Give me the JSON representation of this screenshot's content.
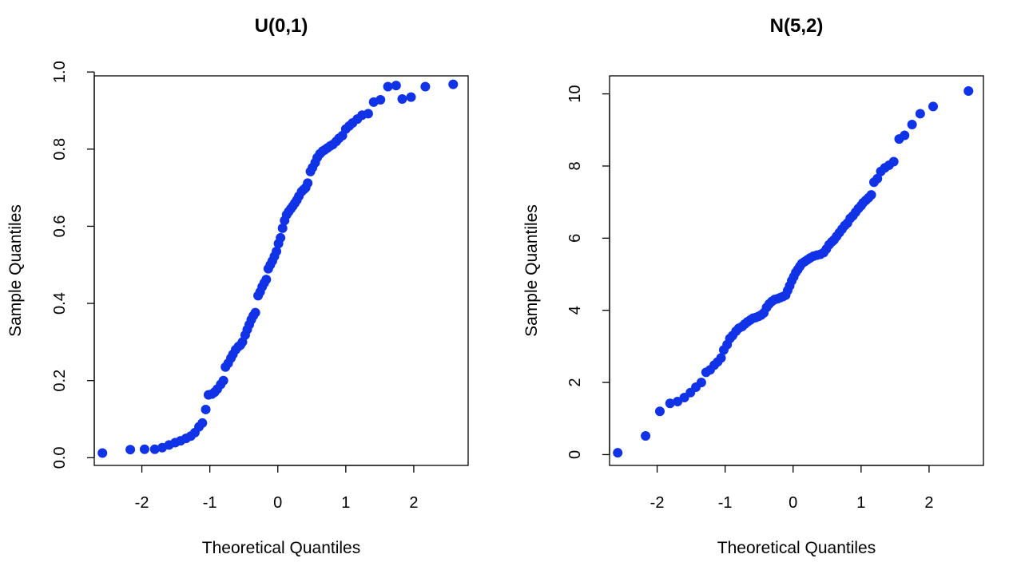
{
  "chart_data": [
    {
      "type": "scatter",
      "title": "U(0,1)",
      "xlabel": "Theoretical Quantiles",
      "ylabel": "Sample Quantiles",
      "xlim": [
        -2.7,
        2.8
      ],
      "ylim": [
        -0.02,
        0.99
      ],
      "xticks": [
        -2,
        -1,
        0,
        1,
        2
      ],
      "xtick_labels": [
        "-2",
        "-1",
        "0",
        "1",
        "2"
      ],
      "yticks": [
        0.0,
        0.2,
        0.4,
        0.6,
        0.8,
        1.0
      ],
      "ytick_labels": [
        "0.0",
        "0.2",
        "0.4",
        "0.6",
        "0.8",
        "1.0"
      ],
      "grid": false,
      "point_color": "#1033e8",
      "points": [
        [
          -2.58,
          0.012
        ],
        [
          -2.17,
          0.021
        ],
        [
          -1.96,
          0.022
        ],
        [
          -1.81,
          0.022
        ],
        [
          -1.7,
          0.026
        ],
        [
          -1.6,
          0.033
        ],
        [
          -1.51,
          0.039
        ],
        [
          -1.43,
          0.044
        ],
        [
          -1.35,
          0.05
        ],
        [
          -1.28,
          0.056
        ],
        [
          -1.22,
          0.065
        ],
        [
          -1.16,
          0.08
        ],
        [
          -1.11,
          0.09
        ],
        [
          -1.06,
          0.125
        ],
        [
          -1.02,
          0.163
        ],
        [
          -0.97,
          0.165
        ],
        [
          -0.93,
          0.17
        ],
        [
          -0.89,
          0.178
        ],
        [
          -0.84,
          0.19
        ],
        [
          -0.8,
          0.2
        ],
        [
          -0.77,
          0.235
        ],
        [
          -0.73,
          0.245
        ],
        [
          -0.69,
          0.258
        ],
        [
          -0.66,
          0.268
        ],
        [
          -0.62,
          0.28
        ],
        [
          -0.58,
          0.288
        ],
        [
          -0.55,
          0.292
        ],
        [
          -0.52,
          0.3
        ],
        [
          -0.48,
          0.318
        ],
        [
          -0.45,
          0.332
        ],
        [
          -0.42,
          0.345
        ],
        [
          -0.39,
          0.358
        ],
        [
          -0.36,
          0.368
        ],
        [
          -0.33,
          0.376
        ],
        [
          -0.29,
          0.42
        ],
        [
          -0.26,
          0.43
        ],
        [
          -0.23,
          0.443
        ],
        [
          -0.2,
          0.453
        ],
        [
          -0.17,
          0.462
        ],
        [
          -0.14,
          0.49
        ],
        [
          -0.11,
          0.5
        ],
        [
          -0.08,
          0.51
        ],
        [
          -0.05,
          0.522
        ],
        [
          -0.02,
          0.535
        ],
        [
          0.01,
          0.555
        ],
        [
          0.04,
          0.57
        ],
        [
          0.07,
          0.595
        ],
        [
          0.1,
          0.615
        ],
        [
          0.13,
          0.63
        ],
        [
          0.16,
          0.638
        ],
        [
          0.19,
          0.645
        ],
        [
          0.22,
          0.652
        ],
        [
          0.25,
          0.66
        ],
        [
          0.28,
          0.668
        ],
        [
          0.31,
          0.678
        ],
        [
          0.35,
          0.69
        ],
        [
          0.38,
          0.695
        ],
        [
          0.41,
          0.7
        ],
        [
          0.44,
          0.712
        ],
        [
          0.48,
          0.742
        ],
        [
          0.51,
          0.752
        ],
        [
          0.55,
          0.765
        ],
        [
          0.58,
          0.778
        ],
        [
          0.62,
          0.788
        ],
        [
          0.66,
          0.795
        ],
        [
          0.69,
          0.798
        ],
        [
          0.73,
          0.803
        ],
        [
          0.77,
          0.808
        ],
        [
          0.81,
          0.812
        ],
        [
          0.86,
          0.82
        ],
        [
          0.9,
          0.828
        ],
        [
          0.95,
          0.835
        ],
        [
          1.0,
          0.852
        ],
        [
          1.05,
          0.86
        ],
        [
          1.1,
          0.868
        ],
        [
          1.17,
          0.878
        ],
        [
          1.24,
          0.888
        ],
        [
          1.33,
          0.892
        ],
        [
          1.41,
          0.922
        ],
        [
          1.51,
          0.928
        ],
        [
          1.62,
          0.962
        ],
        [
          1.74,
          0.965
        ],
        [
          1.83,
          0.93
        ],
        [
          1.96,
          0.935
        ],
        [
          2.17,
          0.962
        ],
        [
          2.58,
          0.968
        ]
      ]
    },
    {
      "type": "scatter",
      "title": "N(5,2)",
      "xlabel": "Theoretical Quantiles",
      "ylabel": "Sample Quantiles",
      "xlim": [
        -2.7,
        2.8
      ],
      "ylim": [
        -0.3,
        10.5
      ],
      "xticks": [
        -2,
        -1,
        0,
        1,
        2
      ],
      "xtick_labels": [
        "-2",
        "-1",
        "0",
        "1",
        "2"
      ],
      "yticks": [
        0,
        2,
        4,
        6,
        8,
        10
      ],
      "ytick_labels": [
        "0",
        "2",
        "4",
        "6",
        "8",
        "10"
      ],
      "grid": false,
      "point_color": "#1033e8",
      "points": [
        [
          -2.58,
          0.05
        ],
        [
          -2.17,
          0.52
        ],
        [
          -1.96,
          1.2
        ],
        [
          -1.81,
          1.42
        ],
        [
          -1.7,
          1.47
        ],
        [
          -1.6,
          1.58
        ],
        [
          -1.51,
          1.72
        ],
        [
          -1.43,
          1.87
        ],
        [
          -1.35,
          2.0
        ],
        [
          -1.28,
          2.28
        ],
        [
          -1.22,
          2.35
        ],
        [
          -1.16,
          2.48
        ],
        [
          -1.11,
          2.57
        ],
        [
          -1.06,
          2.68
        ],
        [
          -1.02,
          2.9
        ],
        [
          -0.97,
          3.05
        ],
        [
          -0.93,
          3.22
        ],
        [
          -0.89,
          3.3
        ],
        [
          -0.84,
          3.42
        ],
        [
          -0.8,
          3.5
        ],
        [
          -0.75,
          3.55
        ],
        [
          -0.71,
          3.62
        ],
        [
          -0.67,
          3.68
        ],
        [
          -0.63,
          3.73
        ],
        [
          -0.59,
          3.78
        ],
        [
          -0.55,
          3.8
        ],
        [
          -0.51,
          3.83
        ],
        [
          -0.47,
          3.87
        ],
        [
          -0.43,
          3.93
        ],
        [
          -0.39,
          4.08
        ],
        [
          -0.35,
          4.18
        ],
        [
          -0.31,
          4.25
        ],
        [
          -0.27,
          4.3
        ],
        [
          -0.23,
          4.32
        ],
        [
          -0.19,
          4.35
        ],
        [
          -0.15,
          4.38
        ],
        [
          -0.11,
          4.42
        ],
        [
          -0.08,
          4.55
        ],
        [
          -0.05,
          4.68
        ],
        [
          -0.02,
          4.82
        ],
        [
          0.01,
          4.93
        ],
        [
          0.04,
          5.05
        ],
        [
          0.07,
          5.13
        ],
        [
          0.1,
          5.22
        ],
        [
          0.13,
          5.3
        ],
        [
          0.17,
          5.35
        ],
        [
          0.21,
          5.4
        ],
        [
          0.25,
          5.45
        ],
        [
          0.3,
          5.5
        ],
        [
          0.35,
          5.53
        ],
        [
          0.4,
          5.55
        ],
        [
          0.45,
          5.6
        ],
        [
          0.49,
          5.7
        ],
        [
          0.53,
          5.82
        ],
        [
          0.57,
          5.9
        ],
        [
          0.6,
          5.95
        ],
        [
          0.64,
          6.05
        ],
        [
          0.68,
          6.15
        ],
        [
          0.72,
          6.25
        ],
        [
          0.76,
          6.35
        ],
        [
          0.8,
          6.42
        ],
        [
          0.84,
          6.55
        ],
        [
          0.88,
          6.62
        ],
        [
          0.92,
          6.72
        ],
        [
          0.96,
          6.82
        ],
        [
          1.0,
          6.9
        ],
        [
          1.03,
          6.98
        ],
        [
          1.07,
          7.05
        ],
        [
          1.11,
          7.12
        ],
        [
          1.15,
          7.2
        ],
        [
          1.19,
          7.55
        ],
        [
          1.24,
          7.65
        ],
        [
          1.29,
          7.85
        ],
        [
          1.35,
          7.95
        ],
        [
          1.41,
          8.02
        ],
        [
          1.48,
          8.12
        ],
        [
          1.56,
          8.75
        ],
        [
          1.64,
          8.85
        ],
        [
          1.75,
          9.15
        ],
        [
          1.87,
          9.45
        ],
        [
          2.06,
          9.65
        ],
        [
          2.58,
          10.08
        ]
      ]
    }
  ]
}
